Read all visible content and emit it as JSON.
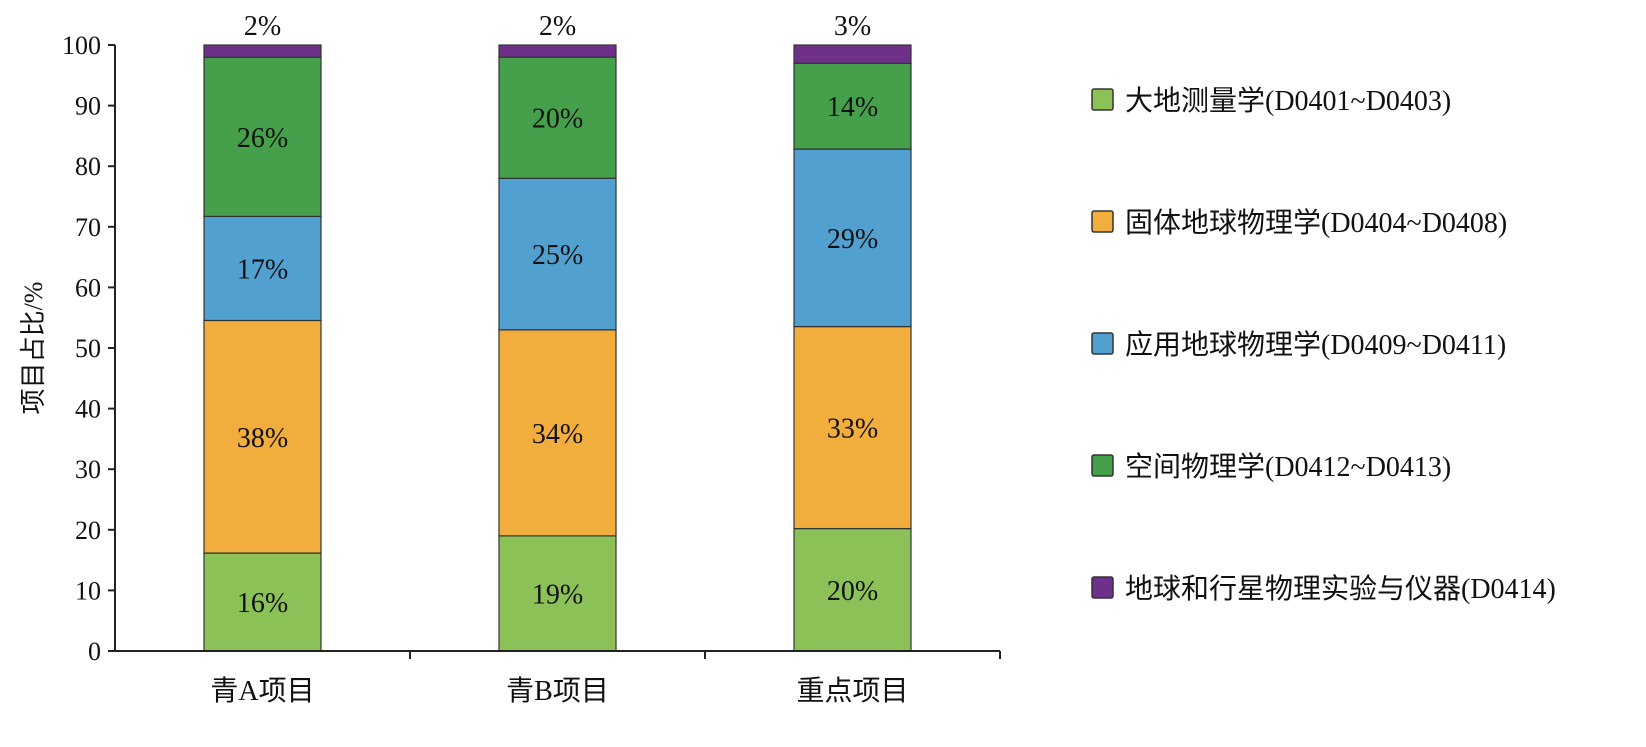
{
  "chart_data": {
    "type": "bar",
    "stacked": true,
    "title": "",
    "xlabel": "",
    "ylabel": "项目占比/%",
    "ylim": [
      0,
      100
    ],
    "yticks": [
      0,
      10,
      20,
      30,
      40,
      50,
      60,
      70,
      80,
      90,
      100
    ],
    "categories": [
      "青A项目",
      "青B项目",
      "重点项目"
    ],
    "legend_position": "right",
    "series": [
      {
        "name": "大地测量学(D0401~D0403)",
        "color": "#8cc158",
        "values": [
          16,
          19,
          20
        ],
        "labels": [
          "16%",
          "19%",
          "20%"
        ]
      },
      {
        "name": "固体地球物理学(D0404~D0408)",
        "color": "#f2ae3c",
        "values": [
          38,
          34,
          33
        ],
        "labels": [
          "38%",
          "34%",
          "33%"
        ]
      },
      {
        "name": "应用地球物理学(D0409~D0411)",
        "color": "#51a0d0",
        "values": [
          17,
          25,
          29
        ],
        "labels": [
          "17%",
          "25%",
          "29%"
        ]
      },
      {
        "name": "空间物理学(D0412~D0413)",
        "color": "#46a04b",
        "values": [
          26,
          20,
          14
        ],
        "labels": [
          "26%",
          "20%",
          "14%"
        ]
      },
      {
        "name": "地球和行星物理实验与仪器(D0414)",
        "color": "#6e3089",
        "values": [
          2,
          2,
          3
        ],
        "labels": [
          "2%",
          "2%",
          "3%"
        ]
      }
    ]
  }
}
